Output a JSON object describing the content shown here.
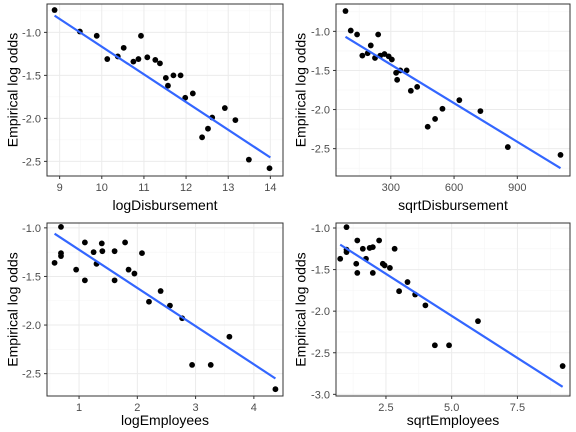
{
  "colors": {
    "points": "#000000",
    "fit_line": "#3366FF"
  },
  "chart_data": [
    {
      "type": "scatter",
      "xlabel": "logDisbursement",
      "ylabel": "Empirical log odds",
      "xlim": [
        8.7,
        14.3
      ],
      "ylim": [
        -2.67,
        -0.67
      ],
      "xticks": [
        9,
        10,
        11,
        12,
        13,
        14
      ],
      "yticks": [
        -1.0,
        -1.5,
        -2.0,
        -2.5
      ],
      "xtick_labels": [
        "9",
        "10",
        "11",
        "12",
        "13",
        "14"
      ],
      "ytick_labels": [
        "-1.0",
        "-1.5",
        "-2.0",
        "-2.5"
      ],
      "points": [
        [
          8.88,
          -0.74
        ],
        [
          9.48,
          -0.99
        ],
        [
          9.88,
          -1.04
        ],
        [
          10.13,
          -1.31
        ],
        [
          10.38,
          -1.28
        ],
        [
          10.52,
          -1.18
        ],
        [
          10.75,
          -1.34
        ],
        [
          10.87,
          -1.31
        ],
        [
          10.93,
          -1.04
        ],
        [
          11.08,
          -1.29
        ],
        [
          11.27,
          -1.32
        ],
        [
          11.38,
          -1.36
        ],
        [
          11.52,
          -1.53
        ],
        [
          11.57,
          -1.62
        ],
        [
          11.7,
          -1.5
        ],
        [
          11.87,
          -1.5
        ],
        [
          11.98,
          -1.76
        ],
        [
          12.16,
          -1.71
        ],
        [
          12.38,
          -2.22
        ],
        [
          12.52,
          -2.12
        ],
        [
          12.62,
          -1.99
        ],
        [
          12.92,
          -1.88
        ],
        [
          13.17,
          -2.02
        ],
        [
          13.49,
          -2.48
        ],
        [
          13.98,
          -2.58
        ]
      ],
      "fit": {
        "x": [
          8.88,
          14.0
        ],
        "y": [
          -0.805,
          -2.455
        ]
      }
    },
    {
      "type": "scatter",
      "xlabel": "sqrtDisbursement",
      "ylabel": "Empirical log odds",
      "xlim": [
        40,
        1150
      ],
      "ylim": [
        -2.85,
        -0.65
      ],
      "xticks": [
        300,
        600,
        900
      ],
      "yticks": [
        -1.0,
        -1.5,
        -2.0,
        -2.5
      ],
      "xtick_labels": [
        "300",
        "600",
        "900"
      ],
      "ytick_labels": [
        "-1.0",
        "-1.5",
        "-2.0",
        "-2.5"
      ],
      "points": [
        [
          85,
          -0.74
        ],
        [
          110,
          -0.99
        ],
        [
          140,
          -1.04
        ],
        [
          165,
          -1.31
        ],
        [
          190,
          -1.28
        ],
        [
          205,
          -1.18
        ],
        [
          225,
          -1.34
        ],
        [
          240,
          -1.04
        ],
        [
          250,
          -1.31
        ],
        [
          270,
          -1.29
        ],
        [
          290,
          -1.32
        ],
        [
          305,
          -1.36
        ],
        [
          325,
          -1.53
        ],
        [
          330,
          -1.62
        ],
        [
          345,
          -1.5
        ],
        [
          375,
          -1.5
        ],
        [
          395,
          -1.76
        ],
        [
          425,
          -1.71
        ],
        [
          475,
          -2.22
        ],
        [
          510,
          -2.12
        ],
        [
          545,
          -1.99
        ],
        [
          625,
          -1.88
        ],
        [
          725,
          -2.02
        ],
        [
          855,
          -2.48
        ],
        [
          1105,
          -2.58
        ]
      ],
      "fit": {
        "x": [
          85,
          1105
        ],
        "y": [
          -1.07,
          -2.75
        ]
      }
    },
    {
      "type": "scatter",
      "xlabel": "logEmployees",
      "ylabel": "Empirical log odds",
      "xlim": [
        0.45,
        4.5
      ],
      "ylim": [
        -2.73,
        -0.95
      ],
      "xticks": [
        1,
        2,
        3,
        4
      ],
      "yticks": [
        -1.0,
        -1.5,
        -2.0,
        -2.5
      ],
      "xtick_labels": [
        "1",
        "2",
        "3",
        "4"
      ],
      "ytick_labels": [
        "-1.0",
        "-1.5",
        "-2.0",
        "-2.5"
      ],
      "points": [
        [
          0.58,
          -1.36
        ],
        [
          0.69,
          -1.26
        ],
        [
          0.69,
          -1.29
        ],
        [
          0.69,
          -0.99
        ],
        [
          0.95,
          -1.43
        ],
        [
          1.1,
          -1.54
        ],
        [
          1.1,
          -1.15
        ],
        [
          1.25,
          -1.25
        ],
        [
          1.3,
          -1.37
        ],
        [
          1.39,
          -1.16
        ],
        [
          1.4,
          -1.24
        ],
        [
          1.61,
          -1.54
        ],
        [
          1.61,
          -1.24
        ],
        [
          1.79,
          -1.15
        ],
        [
          1.85,
          -1.43
        ],
        [
          1.95,
          -1.47
        ],
        [
          2.08,
          -1.26
        ],
        [
          2.2,
          -1.76
        ],
        [
          2.4,
          -1.65
        ],
        [
          2.56,
          -1.8
        ],
        [
          2.77,
          -1.93
        ],
        [
          2.94,
          -2.41
        ],
        [
          3.26,
          -2.41
        ],
        [
          3.58,
          -2.12
        ],
        [
          4.37,
          -2.66
        ]
      ],
      "fit": {
        "x": [
          0.58,
          4.37
        ],
        "y": [
          -1.06,
          -2.55
        ]
      }
    },
    {
      "type": "scatter",
      "xlabel": "sqrtEmployees",
      "ylabel": "Empirical log odds",
      "xlim": [
        0.6,
        9.5
      ],
      "ylim": [
        -3.02,
        -0.94
      ],
      "xticks": [
        2.5,
        5.0,
        7.5
      ],
      "yticks": [
        -1.0,
        -1.5,
        -2.0,
        -2.5,
        -3.0
      ],
      "xtick_labels": [
        "2.5",
        "5.0",
        "7.5"
      ],
      "ytick_labels": [
        "-1.0",
        "-1.5",
        "-2.0",
        "-2.5",
        "-3.0"
      ],
      "points": [
        [
          0.76,
          -1.37
        ],
        [
          1.0,
          -1.29
        ],
        [
          1.0,
          -1.26
        ],
        [
          1.0,
          -0.99
        ],
        [
          1.37,
          -1.43
        ],
        [
          1.41,
          -1.15
        ],
        [
          1.41,
          -1.54
        ],
        [
          1.62,
          -1.25
        ],
        [
          1.74,
          -1.37
        ],
        [
          1.88,
          -1.24
        ],
        [
          2.0,
          -1.54
        ],
        [
          2.0,
          -1.23
        ],
        [
          2.24,
          -1.15
        ],
        [
          2.38,
          -1.43
        ],
        [
          2.45,
          -1.45
        ],
        [
          2.65,
          -1.48
        ],
        [
          2.83,
          -1.25
        ],
        [
          3.0,
          -1.76
        ],
        [
          3.32,
          -1.65
        ],
        [
          3.61,
          -1.8
        ],
        [
          4.0,
          -1.93
        ],
        [
          4.36,
          -2.41
        ],
        [
          4.9,
          -2.41
        ],
        [
          6.0,
          -2.12
        ],
        [
          9.22,
          -2.66
        ]
      ],
      "fit": {
        "x": [
          0.76,
          9.22
        ],
        "y": [
          -1.2,
          -2.91
        ]
      }
    }
  ]
}
